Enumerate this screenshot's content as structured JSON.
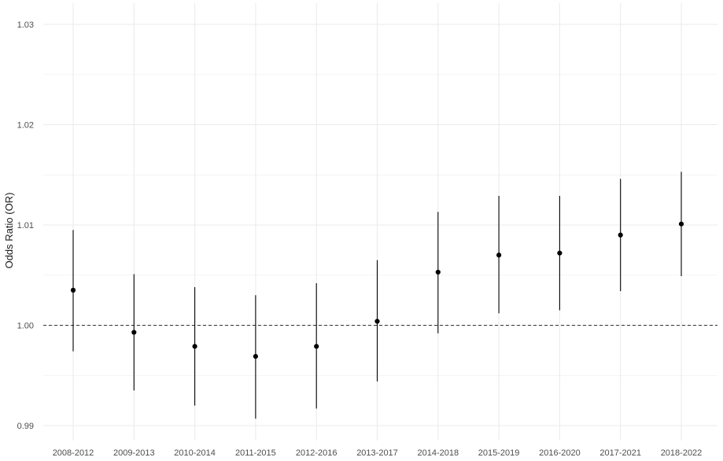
{
  "chart_data": {
    "type": "scatter",
    "title": "",
    "xlabel": "",
    "ylabel": "Odds Ratio (OR)",
    "categories": [
      "2008-2012",
      "2009-2013",
      "2010-2014",
      "2011-2015",
      "2012-2016",
      "2013-2017",
      "2014-2018",
      "2015-2019",
      "2016-2020",
      "2017-2021",
      "2018-2022"
    ],
    "series": [
      {
        "estimate": [
          1.0035,
          0.9993,
          0.9979,
          0.9969,
          0.9979,
          1.0004,
          1.0053,
          1.007,
          1.0072,
          1.009,
          1.0101
        ],
        "lower": [
          0.9974,
          0.9935,
          0.992,
          0.9907,
          0.9917,
          0.9944,
          0.9992,
          1.0012,
          1.0015,
          1.0034,
          1.0049
        ],
        "upper": [
          1.0095,
          1.0051,
          1.0038,
          1.003,
          1.0042,
          1.0065,
          1.0113,
          1.0129,
          1.0129,
          1.0146,
          1.0153
        ]
      }
    ],
    "ylim": [
      0.9885,
      1.0305
    ],
    "yticks": [
      0.99,
      1.0,
      1.01,
      1.02,
      1.03
    ],
    "ytick_labels": [
      "0.99",
      "1.00",
      "1.01",
      "1.02",
      "1.03"
    ],
    "reference_line": 1.0,
    "grid": true,
    "legend": "none",
    "colors": {
      "point": "#000000",
      "errorbar": "#000000",
      "grid": "#ebebeb",
      "reference": "#333333",
      "text": "#4d4d4d"
    }
  }
}
